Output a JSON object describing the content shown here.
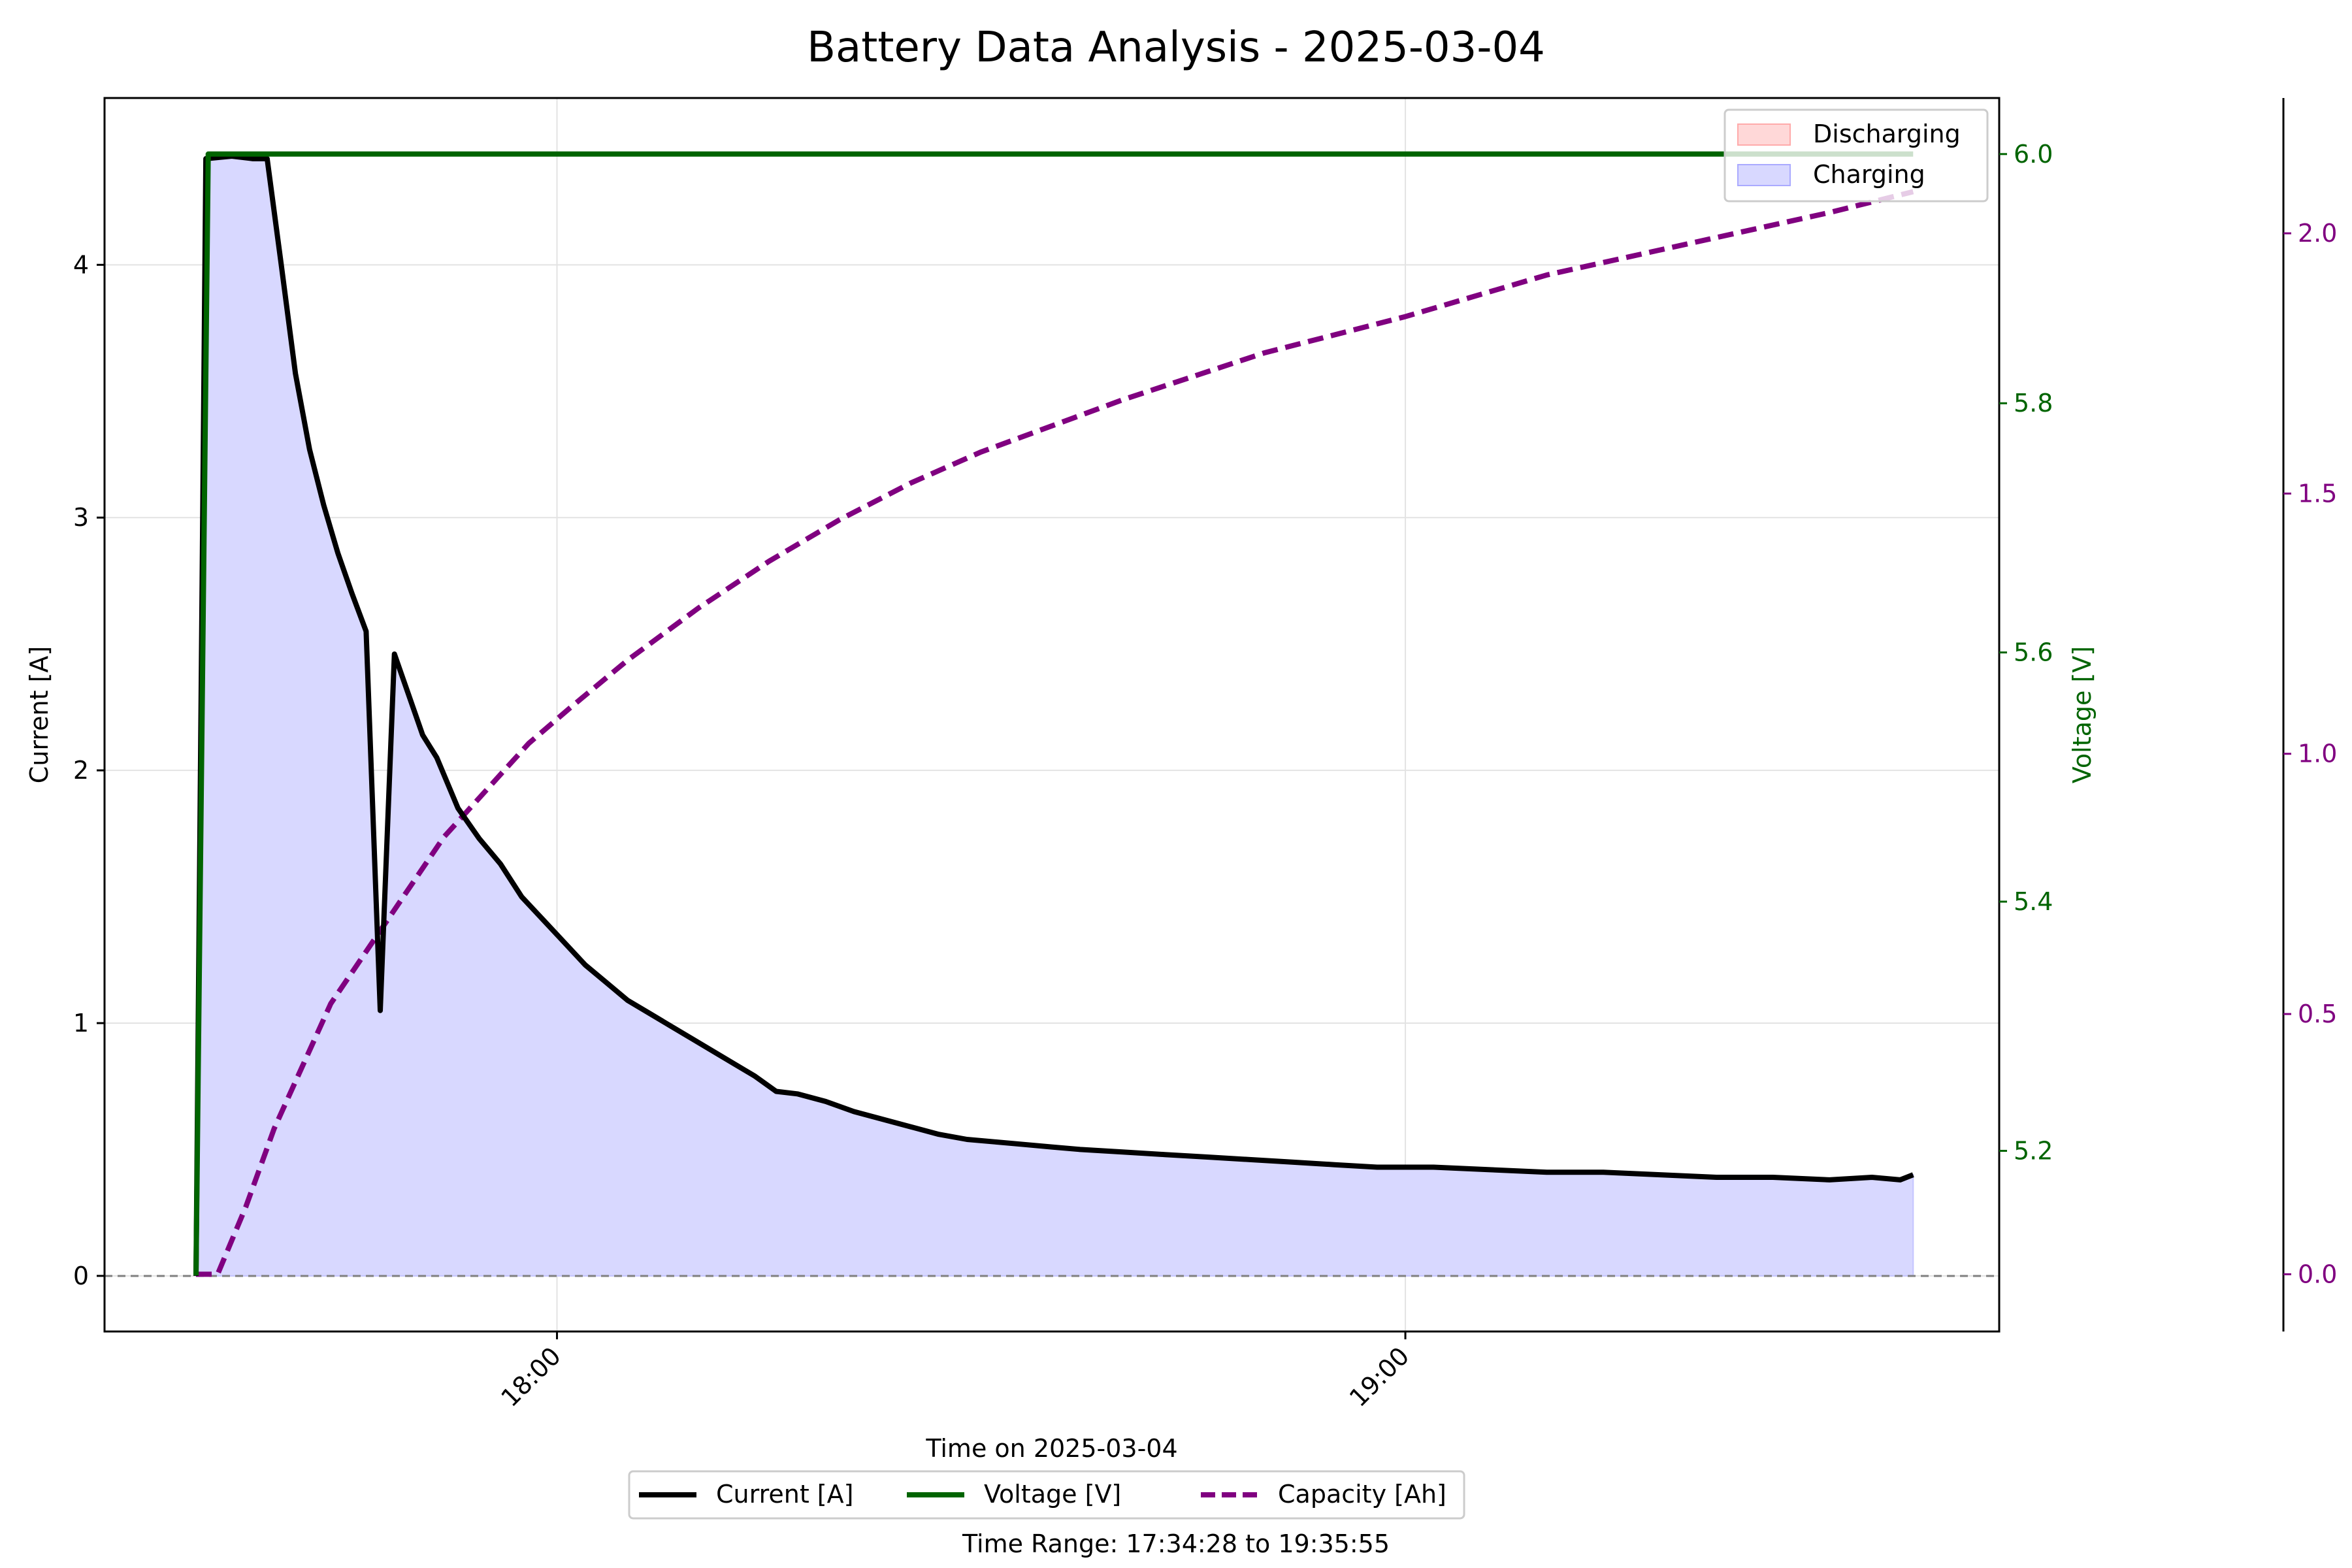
{
  "colors": {
    "current": "#000000",
    "voltage": "#006400",
    "capacity": "#800080",
    "charging_fill": "#d8d8ff",
    "discharging_fill": "#ffd8d8",
    "grid": "#e3e3e3"
  },
  "chart_data": {
    "type": "line",
    "title": "Battery Data Analysis - 2025-03-04",
    "xlabel": "Time on 2025-03-04",
    "footnote": "Time Range: 17:34:28 to 19:35:55",
    "x_axis": {
      "type": "time",
      "range": [
        "17:28",
        "19:42"
      ],
      "ticks": [
        "18:00",
        "19:00"
      ]
    },
    "y_axes": {
      "left": {
        "label": "Current [A]",
        "range": [
          -0.22,
          4.66
        ],
        "ticks": [
          "0",
          "1",
          "2",
          "3",
          "4"
        ],
        "tick_values": [
          0,
          1,
          2,
          3,
          4
        ]
      },
      "right": {
        "label": "Voltage [V]",
        "range": [
          5.055,
          6.045
        ],
        "ticks": [
          "5.2",
          "5.4",
          "5.6",
          "5.8",
          "6.0"
        ],
        "tick_values": [
          5.2,
          5.4,
          5.6,
          5.8,
          6.0
        ]
      },
      "far_right": {
        "label": "",
        "range": [
          -0.11,
          2.26
        ],
        "ticks": [
          "0.0",
          "0.5",
          "1.0",
          "1.5",
          "2.0"
        ],
        "tick_values": [
          0.0,
          0.5,
          1.0,
          1.5,
          2.0
        ]
      }
    },
    "grid": true,
    "legend_top": {
      "position": "top-right",
      "entries": [
        "Discharging",
        "Charging"
      ]
    },
    "legend_bottom": {
      "position": "bottom-center",
      "entries": [
        "Current [A]",
        "Voltage [V]",
        "Capacity [Ah]"
      ]
    },
    "series": [
      {
        "name": "Current [A]",
        "axis": "left",
        "style": "solid",
        "points": [
          [
            "17:34:28",
            0.0
          ],
          [
            "17:35:10",
            4.42
          ],
          [
            "17:37:00",
            4.43
          ],
          [
            "17:38:30",
            4.42
          ],
          [
            "17:39:30",
            4.42
          ],
          [
            "17:40:30",
            4.0
          ],
          [
            "17:41:30",
            3.57
          ],
          [
            "17:42:30",
            3.27
          ],
          [
            "17:43:30",
            3.05
          ],
          [
            "17:44:30",
            2.86
          ],
          [
            "17:45:30",
            2.7
          ],
          [
            "17:46:30",
            2.55
          ],
          [
            "17:47:30",
            1.05
          ],
          [
            "17:48:30",
            2.46
          ],
          [
            "17:49:30",
            2.3
          ],
          [
            "17:50:30",
            2.14
          ],
          [
            "17:51:30",
            2.05
          ],
          [
            "17:53:00",
            1.85
          ],
          [
            "17:54:30",
            1.73
          ],
          [
            "17:56:00",
            1.63
          ],
          [
            "17:57:30",
            1.5
          ],
          [
            "17:59:00",
            1.41
          ],
          [
            "18:00:30",
            1.32
          ],
          [
            "18:02:00",
            1.23
          ],
          [
            "18:03:30",
            1.16
          ],
          [
            "18:05:00",
            1.09
          ],
          [
            "18:06:30",
            1.04
          ],
          [
            "18:08:00",
            0.99
          ],
          [
            "18:09:30",
            0.94
          ],
          [
            "18:11:00",
            0.89
          ],
          [
            "18:12:30",
            0.84
          ],
          [
            "18:14:00",
            0.79
          ],
          [
            "18:15:30",
            0.73
          ],
          [
            "18:17:00",
            0.72
          ],
          [
            "18:19:00",
            0.69
          ],
          [
            "18:21:00",
            0.65
          ],
          [
            "18:23:00",
            0.62
          ],
          [
            "18:25:00",
            0.59
          ],
          [
            "18:27:00",
            0.56
          ],
          [
            "18:29:00",
            0.54
          ],
          [
            "18:31:00",
            0.53
          ],
          [
            "18:33:00",
            0.52
          ],
          [
            "18:35:00",
            0.51
          ],
          [
            "18:37:00",
            0.5
          ],
          [
            "18:40:00",
            0.49
          ],
          [
            "18:43:00",
            0.48
          ],
          [
            "18:46:00",
            0.47
          ],
          [
            "18:49:00",
            0.46
          ],
          [
            "18:52:00",
            0.45
          ],
          [
            "18:55:00",
            0.44
          ],
          [
            "18:58:00",
            0.43
          ],
          [
            "19:02:00",
            0.43
          ],
          [
            "19:06:00",
            0.42
          ],
          [
            "19:10:00",
            0.41
          ],
          [
            "19:14:00",
            0.41
          ],
          [
            "19:18:00",
            0.4
          ],
          [
            "19:22:00",
            0.39
          ],
          [
            "19:26:00",
            0.39
          ],
          [
            "19:30:00",
            0.38
          ],
          [
            "19:33:00",
            0.39
          ],
          [
            "19:35:00",
            0.38
          ],
          [
            "19:35:55",
            0.4
          ]
        ]
      },
      {
        "name": "Voltage [V]",
        "axis": "right",
        "style": "solid",
        "points": [
          [
            "17:34:28",
            5.1
          ],
          [
            "17:35:20",
            6.0
          ],
          [
            "19:35:55",
            6.0
          ]
        ]
      },
      {
        "name": "Capacity [Ah]",
        "axis": "far_right",
        "style": "dashed",
        "points": [
          [
            "17:34:28",
            0.0
          ],
          [
            "17:36:00",
            0.0
          ],
          [
            "17:38:00",
            0.13
          ],
          [
            "17:40:00",
            0.28
          ],
          [
            "17:42:00",
            0.4
          ],
          [
            "17:44:00",
            0.52
          ],
          [
            "17:46:00",
            0.6
          ],
          [
            "17:48:00",
            0.68
          ],
          [
            "17:50:00",
            0.76
          ],
          [
            "17:52:00",
            0.84
          ],
          [
            "17:55:00",
            0.93
          ],
          [
            "17:58:00",
            1.02
          ],
          [
            "18:01:00",
            1.09
          ],
          [
            "18:05:00",
            1.18
          ],
          [
            "18:10:00",
            1.28
          ],
          [
            "18:15:00",
            1.37
          ],
          [
            "18:20:00",
            1.45
          ],
          [
            "18:25:00",
            1.52
          ],
          [
            "18:30:00",
            1.58
          ],
          [
            "18:40:00",
            1.68
          ],
          [
            "18:50:00",
            1.77
          ],
          [
            "19:00:00",
            1.84
          ],
          [
            "19:10:00",
            1.92
          ],
          [
            "19:20:00",
            1.98
          ],
          [
            "19:30:00",
            2.04
          ],
          [
            "19:35:55",
            2.08
          ]
        ]
      }
    ],
    "fill": {
      "label": "Charging",
      "under": "Current [A]",
      "baseline": 0
    }
  }
}
